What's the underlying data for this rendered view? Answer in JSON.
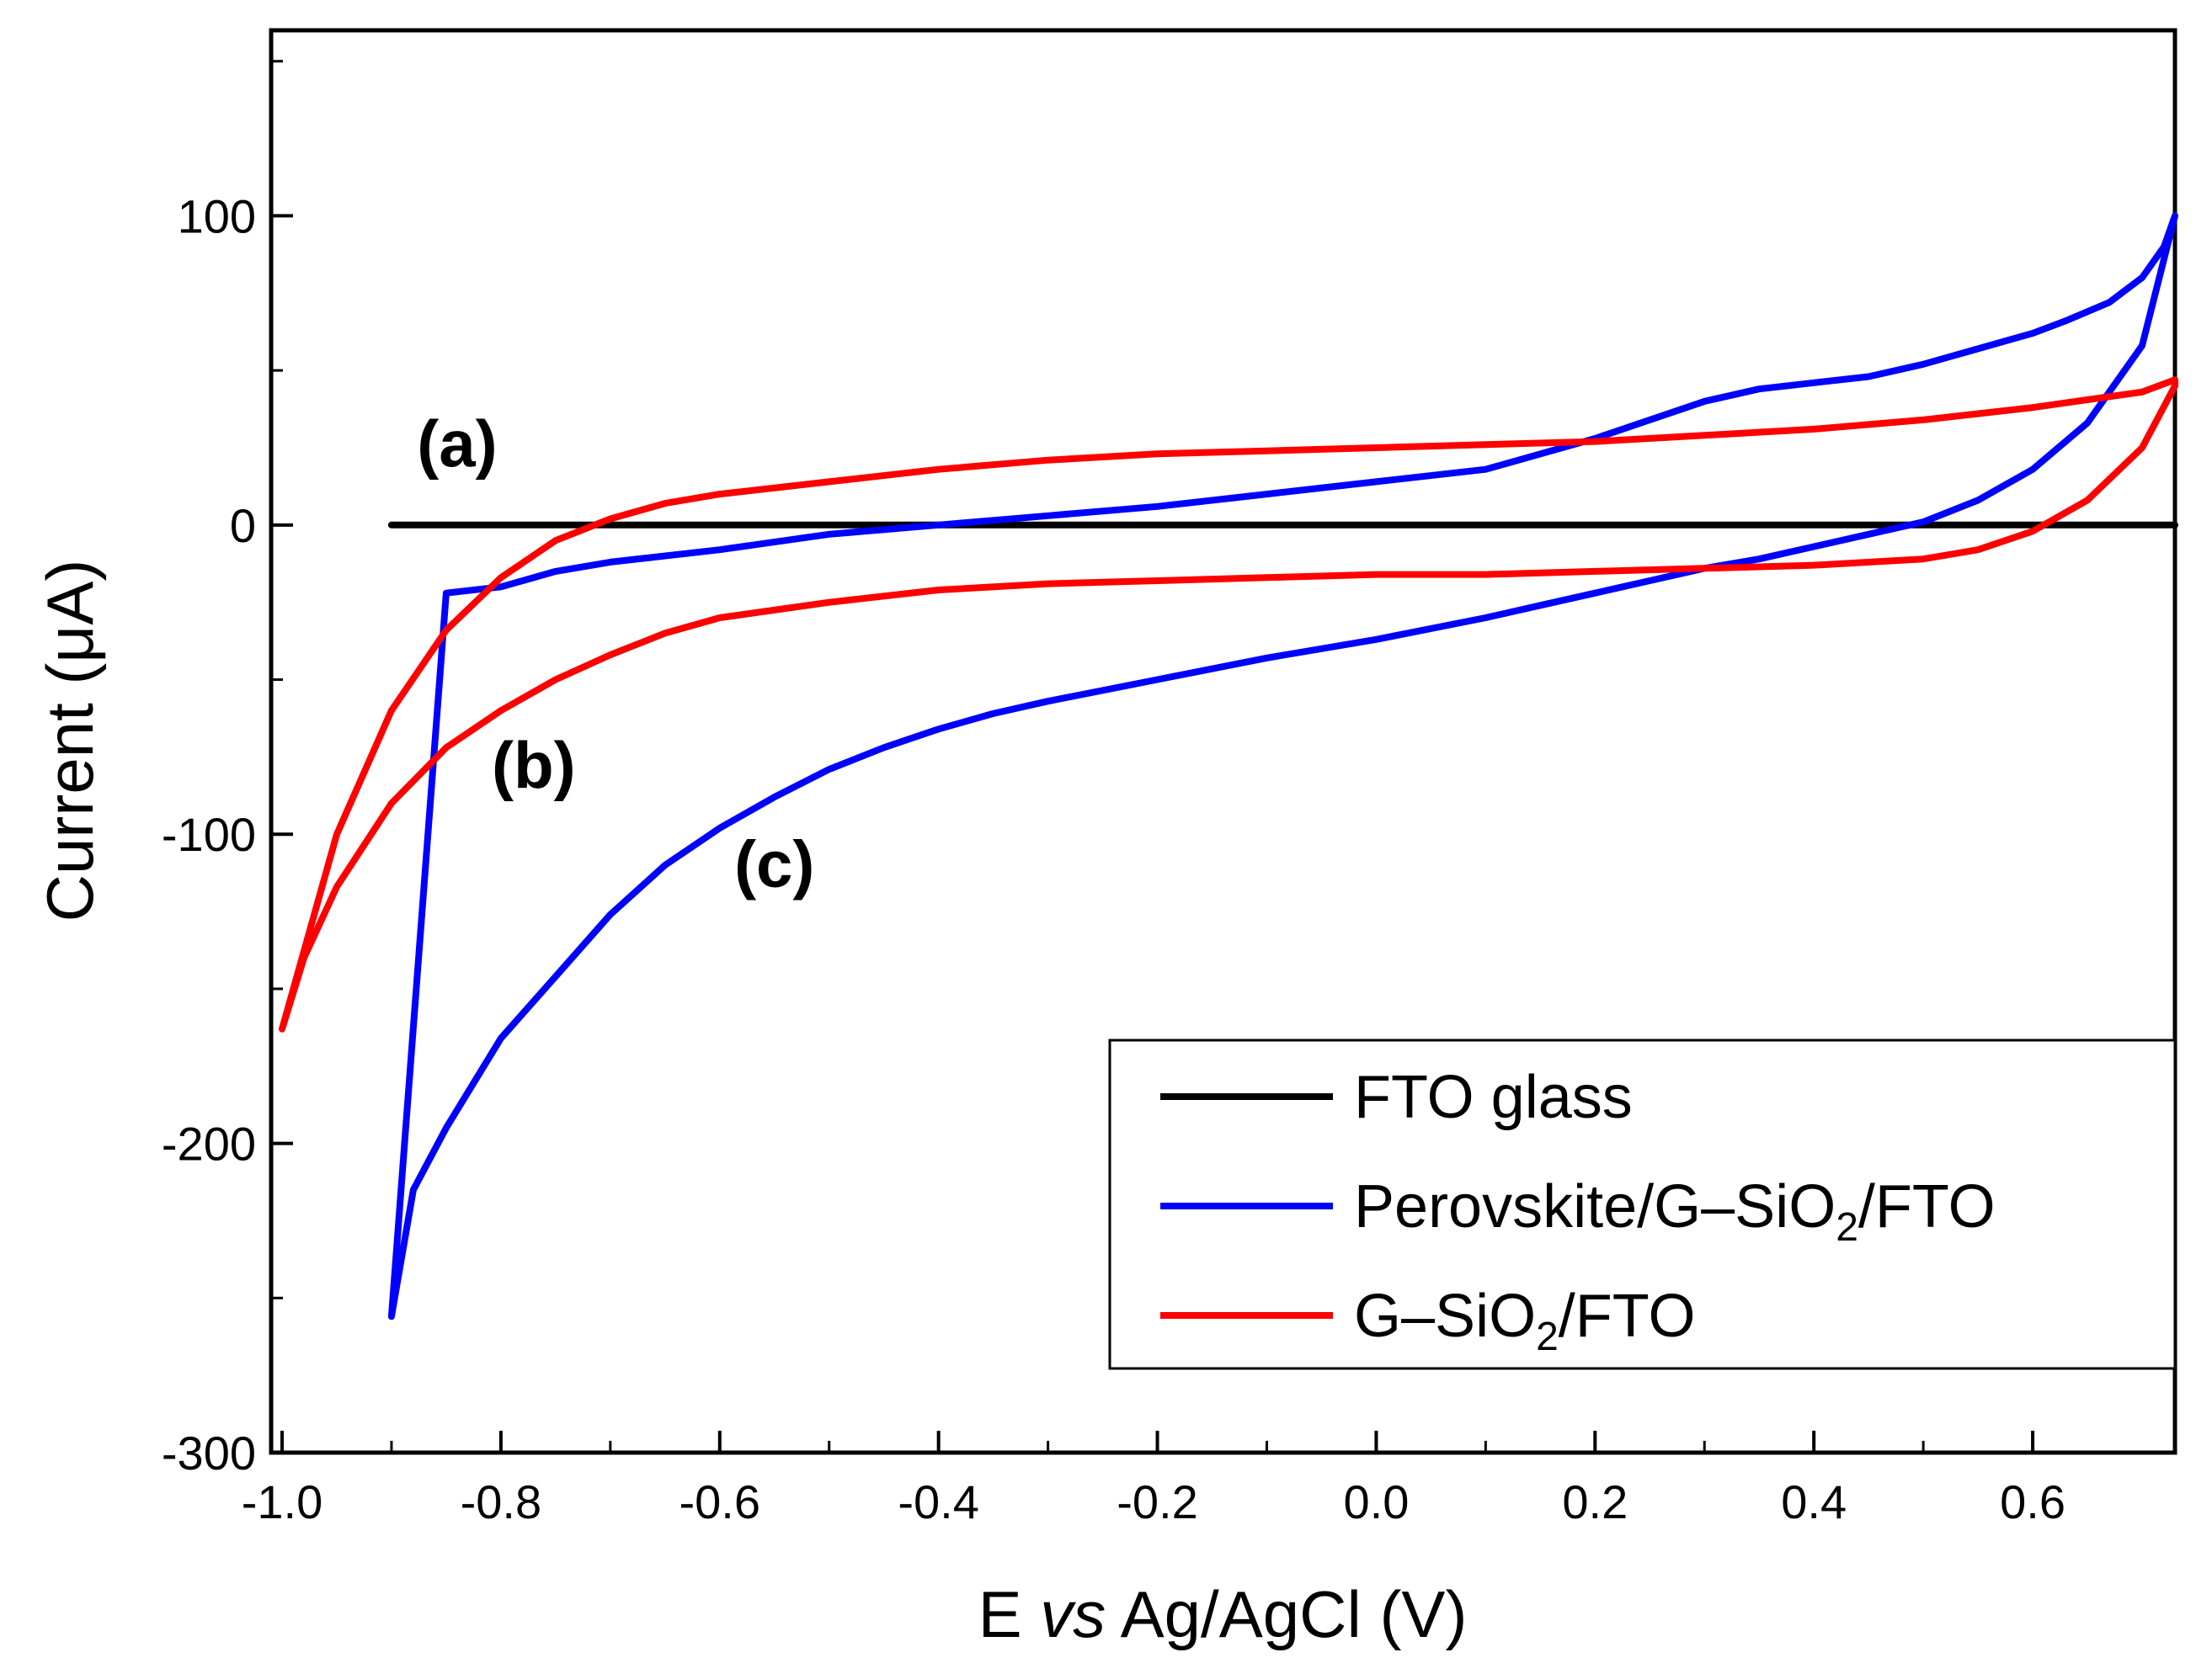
{
  "chart_data": {
    "type": "line",
    "title": "",
    "xlabel_parts": [
      "E ",
      "vs",
      " Ag/AgCl (V)"
    ],
    "ylabel": "Current (μA)",
    "xlim": [
      -1.01,
      0.73
    ],
    "ylim": [
      -300,
      160
    ],
    "x_ticks": [
      "-1.0",
      "-0.8",
      "-0.6",
      "-0.4",
      "-0.2",
      "0.0",
      "0.2",
      "0.4",
      "0.6"
    ],
    "x_tick_values": [
      -1.0,
      -0.8,
      -0.6,
      -0.4,
      -0.2,
      0.0,
      0.2,
      0.4,
      0.6
    ],
    "y_ticks": [
      "-300",
      "-200",
      "-100",
      "0",
      "100"
    ],
    "y_tick_values": [
      -300,
      -200,
      -100,
      0,
      100
    ],
    "grid": false,
    "legend_position": "bottom-right",
    "curve_labels": [
      {
        "text": "(a)",
        "x": -0.84,
        "y": 19
      },
      {
        "text": "(b)",
        "x": -0.77,
        "y": -85
      },
      {
        "text": "(c)",
        "x": -0.55,
        "y": -117
      }
    ],
    "series": [
      {
        "name": "FTO glass",
        "color": "#000000",
        "x": [
          -0.9,
          0.73
        ],
        "y": [
          0,
          0
        ]
      },
      {
        "name": "Perovskite/G–SiO",
        "legend_sub": "2",
        "legend_suffix": "/FTO",
        "color": "#0000ff",
        "x": [
          -0.9,
          -0.88,
          -0.85,
          -0.8,
          -0.75,
          -0.7,
          -0.65,
          -0.6,
          -0.55,
          -0.5,
          -0.45,
          -0.4,
          -0.35,
          -0.3,
          -0.2,
          -0.1,
          0.0,
          0.1,
          0.15,
          0.2,
          0.25,
          0.3,
          0.35,
          0.4,
          0.45,
          0.5,
          0.55,
          0.6,
          0.65,
          0.7,
          0.73,
          0.72,
          0.7,
          0.67,
          0.63,
          0.6,
          0.55,
          0.5,
          0.45,
          0.4,
          0.35,
          0.3,
          0.2,
          0.1,
          0.0,
          -0.1,
          -0.2,
          -0.3,
          -0.4,
          -0.5,
          -0.6,
          -0.7,
          -0.75,
          -0.8,
          -0.85,
          -0.9
        ],
        "y": [
          -256,
          -215,
          -195,
          -166,
          -146,
          -126,
          -110,
          -98,
          -88,
          -79,
          -72,
          -66,
          -61,
          -57,
          -50,
          -43,
          -37,
          -30,
          -26,
          -22,
          -18,
          -14,
          -11,
          -7,
          -3,
          1,
          8,
          18,
          33,
          58,
          100,
          90,
          80,
          72,
          66,
          62,
          57,
          52,
          48,
          46,
          44,
          40,
          28,
          18,
          14,
          10,
          6,
          3,
          0,
          -3,
          -8,
          -12,
          -15,
          -20,
          -22,
          -256
        ]
      },
      {
        "name": "G–SiO",
        "legend_sub": "2",
        "legend_suffix": "/FTO",
        "color": "#ff0000",
        "x": [
          -1.0,
          -0.98,
          -0.95,
          -0.9,
          -0.85,
          -0.8,
          -0.75,
          -0.7,
          -0.65,
          -0.6,
          -0.5,
          -0.4,
          -0.3,
          -0.2,
          -0.1,
          0.0,
          0.1,
          0.2,
          0.3,
          0.4,
          0.5,
          0.55,
          0.6,
          0.65,
          0.7,
          0.73,
          0.73,
          0.7,
          0.6,
          0.5,
          0.4,
          0.3,
          0.2,
          0.1,
          0.0,
          -0.1,
          -0.2,
          -0.3,
          -0.4,
          -0.5,
          -0.6,
          -0.65,
          -0.7,
          -0.75,
          -0.8,
          -0.85,
          -0.9,
          -0.95,
          -1.0
        ],
        "y": [
          -163,
          -140,
          -117,
          -90,
          -72,
          -60,
          -50,
          -42,
          -35,
          -30,
          -25,
          -21,
          -19,
          -18,
          -17,
          -16,
          -16,
          -15,
          -14,
          -13,
          -11,
          -8,
          -2,
          8,
          25,
          45,
          47,
          43,
          38,
          34,
          31,
          29,
          27,
          26,
          25,
          24,
          23,
          21,
          18,
          14,
          10,
          7,
          2,
          -5,
          -17,
          -34,
          -60,
          -100,
          -163
        ]
      }
    ]
  }
}
